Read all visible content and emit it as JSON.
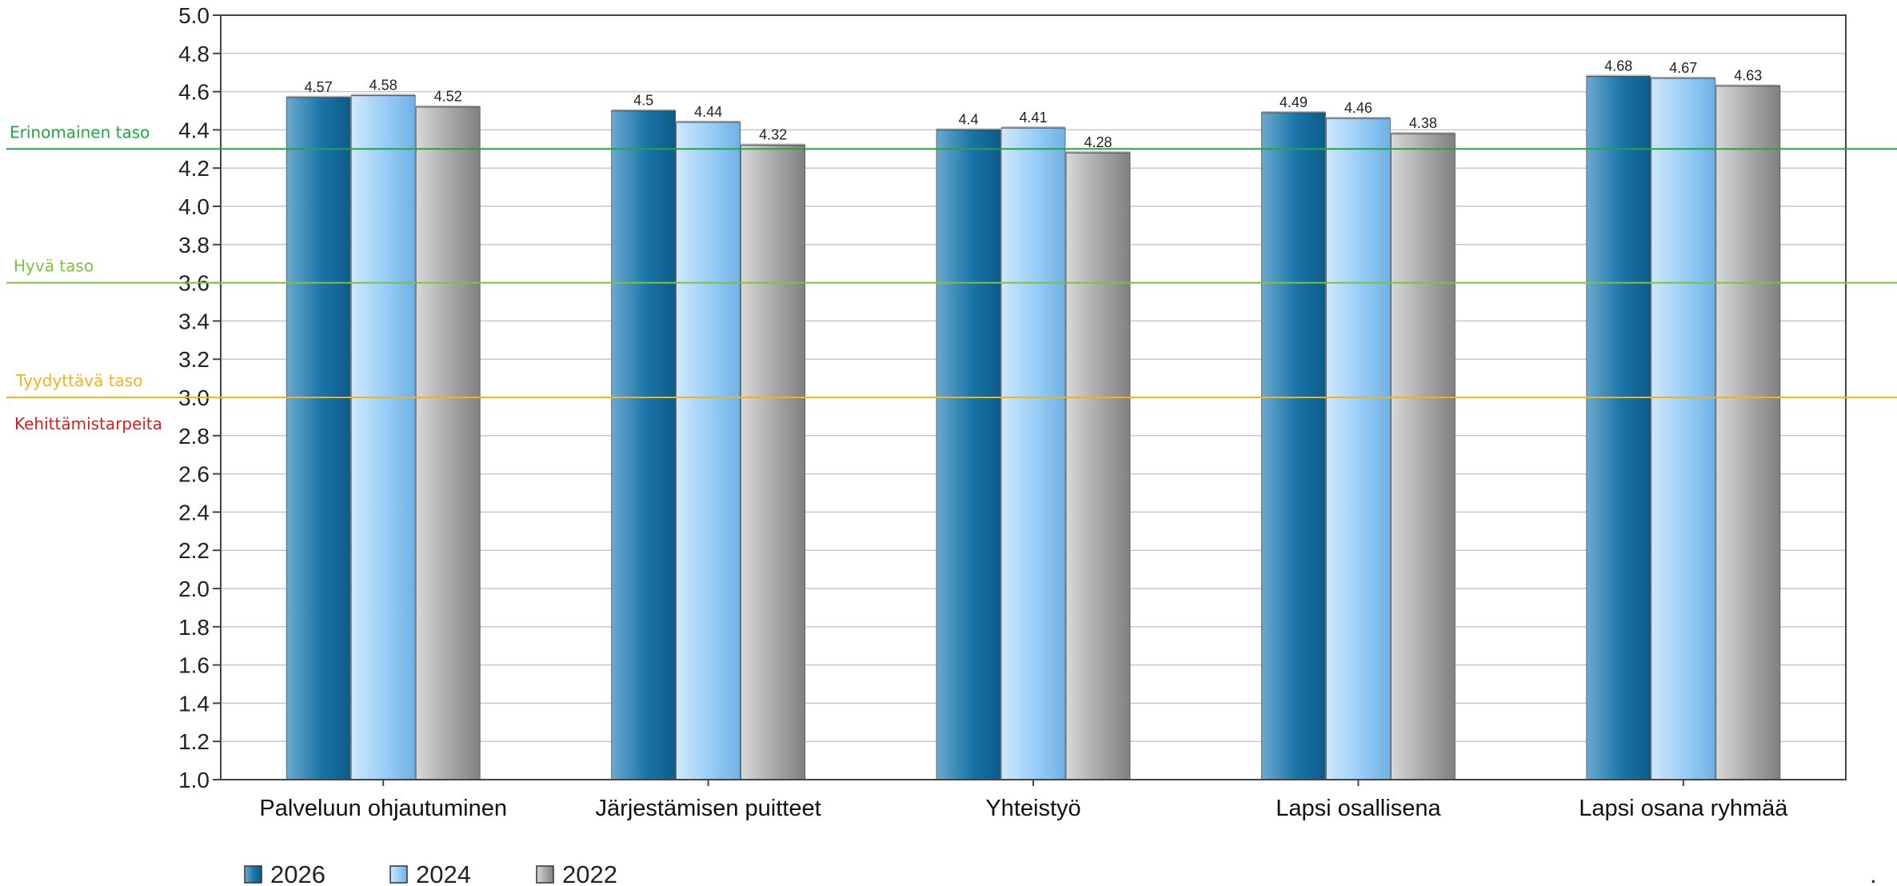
{
  "chart_data": {
    "type": "bar",
    "categories": [
      "Palveluun ohjautuminen",
      "Järjestämisen puitteet",
      "Yhteistyö",
      "Lapsi osallisena",
      "Lapsi osana ryhmää"
    ],
    "series": [
      {
        "name": "2026",
        "values": [
          4.57,
          4.5,
          4.4,
          4.49,
          4.68
        ],
        "labels": [
          "4.57",
          "4.5",
          "4.4",
          "4.49",
          "4.68"
        ],
        "color": "#1570a3"
      },
      {
        "name": "2024",
        "values": [
          4.58,
          4.44,
          4.41,
          4.46,
          4.67
        ],
        "labels": [
          "4.58",
          "4.44",
          "4.41",
          "4.46",
          "4.67"
        ],
        "color": "#8ec7f4"
      },
      {
        "name": "2022",
        "values": [
          4.52,
          4.32,
          4.28,
          4.38,
          4.63
        ],
        "labels": [
          "4.52",
          "4.32",
          "4.28",
          "4.38",
          "4.63"
        ],
        "color": "#9a9a9a"
      }
    ],
    "ylim": [
      1.0,
      5.0
    ],
    "yticks": [
      "1.0",
      "1.2",
      "1.4",
      "1.6",
      "1.8",
      "2.0",
      "2.2",
      "2.4",
      "2.6",
      "2.8",
      "3.0",
      "3.2",
      "3.4",
      "3.6",
      "3.8",
      "4.0",
      "4.2",
      "4.4",
      "4.6",
      "4.8",
      "5.0"
    ],
    "grid": true,
    "legend_position": "bottom-left",
    "reference_lines": [
      {
        "value": 4.3,
        "label": "Erinomainen taso",
        "color": "#1fa83f"
      },
      {
        "value": 3.6,
        "label": "Hyvä taso",
        "color": "#7cc242"
      },
      {
        "value": 3.0,
        "label": "Tyydyttävä taso",
        "color": "#f3b21b"
      }
    ],
    "below_label": {
      "label": "Kehittämistarpeita",
      "color": "#cc1f1f"
    },
    "trailing_mark": "."
  }
}
